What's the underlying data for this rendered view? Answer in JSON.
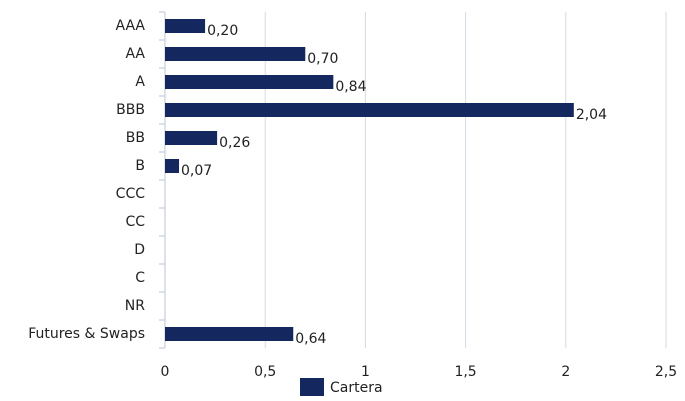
{
  "chart_data": {
    "type": "hbar",
    "categories": [
      "AAA",
      "AA",
      "A",
      "BBB",
      "BB",
      "B",
      "CCC",
      "CC",
      "D",
      "C",
      "NR",
      "Futures & Swaps"
    ],
    "series": [
      {
        "name": "Cartera",
        "color": "#14285f",
        "values": [
          0.2,
          0.7,
          0.84,
          2.04,
          0.26,
          0.07,
          null,
          null,
          null,
          null,
          null,
          0.64
        ],
        "value_labels": [
          "0,20",
          "0,70",
          "0,84",
          "2,04",
          "0,26",
          "0,07",
          null,
          null,
          null,
          null,
          null,
          "0,64"
        ]
      }
    ],
    "xlim": [
      0,
      2.5
    ],
    "xticks": [
      0,
      {
        "value": 0.5,
        "label": "0,5"
      },
      1,
      {
        "value": 1.5,
        "label": "1,5"
      },
      2,
      {
        "value": 2.5,
        "label": "2,5"
      }
    ],
    "grid": true,
    "legend": "bottom"
  }
}
